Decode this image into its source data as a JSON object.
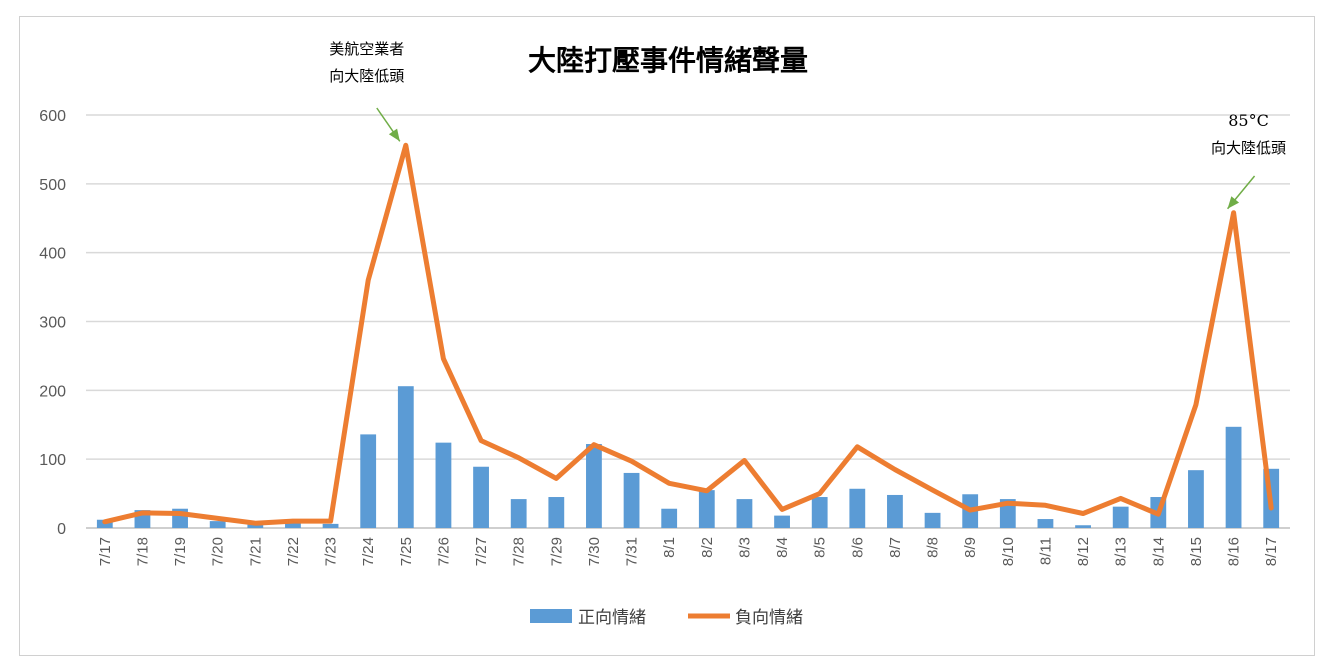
{
  "chart_data": {
    "type": "bar+line",
    "title": "大陸打壓事件情緒聲量",
    "categories": [
      "7/17",
      "7/18",
      "7/19",
      "7/20",
      "7/21",
      "7/22",
      "7/23",
      "7/24",
      "7/25",
      "7/26",
      "7/27",
      "7/28",
      "7/29",
      "7/30",
      "7/31",
      "8/1",
      "8/2",
      "8/3",
      "8/4",
      "8/5",
      "8/6",
      "8/7",
      "8/8",
      "8/9",
      "8/10",
      "8/11",
      "8/12",
      "8/13",
      "8/14",
      "8/15",
      "8/16",
      "8/17"
    ],
    "series": [
      {
        "name": "正向情緒",
        "type": "bar",
        "color": "#5B9BD5",
        "values": [
          12,
          26,
          28,
          10,
          5,
          8,
          6,
          136,
          206,
          124,
          89,
          42,
          45,
          122,
          80,
          28,
          55,
          42,
          18,
          45,
          57,
          48,
          22,
          49,
          42,
          13,
          4,
          31,
          45,
          84,
          147,
          86
        ]
      },
      {
        "name": "負向情緒",
        "type": "line",
        "color": "#ED7D31",
        "values": [
          9,
          22,
          21,
          14,
          7,
          10,
          10,
          360,
          556,
          246,
          127,
          102,
          72,
          121,
          97,
          65,
          54,
          98,
          27,
          50,
          118,
          85,
          55,
          26,
          36,
          33,
          21,
          43,
          20,
          179,
          458,
          29
        ]
      }
    ],
    "ylim": [
      0,
      600
    ],
    "yticks": [
      0,
      100,
      200,
      300,
      400,
      500,
      600
    ],
    "grid": true,
    "legend_position": "bottom",
    "annotations": [
      {
        "lines": [
          "美航空業者",
          "向大陸低頭"
        ],
        "target_category": "7/25",
        "target_series": "負向情緒",
        "arrow_color": "#70AD47"
      },
      {
        "lines": [
          "85°C",
          "向大陸低頭"
        ],
        "target_category": "8/16",
        "target_series": "負向情緒",
        "arrow_color": "#70AD47"
      }
    ]
  }
}
